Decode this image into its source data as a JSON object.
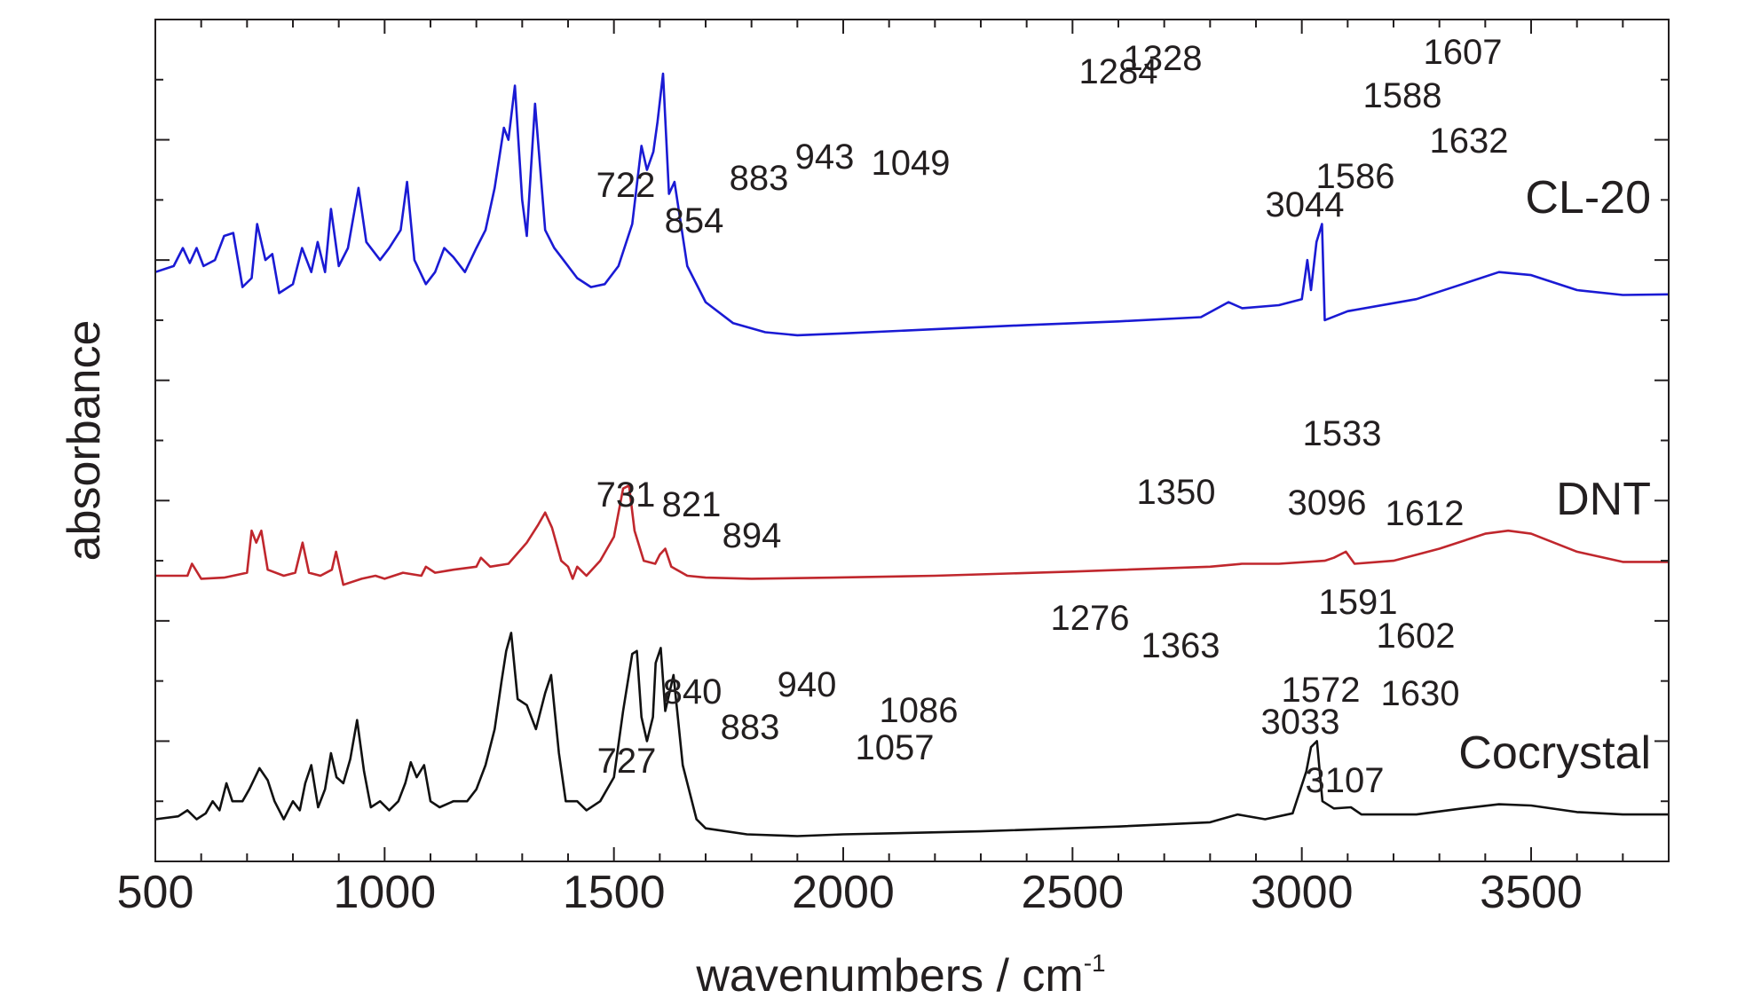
{
  "chart_data": {
    "type": "line",
    "xlabel": "wavenumbers / cm",
    "xlabel_superscript": "-1",
    "ylabel": "absorbance",
    "xlim": [
      500,
      3800
    ],
    "ylim": [
      0,
      14
    ],
    "x_ticks": [
      500,
      1000,
      1500,
      2000,
      2500,
      3000,
      3500
    ],
    "x_tick_labels": [
      "500",
      "1000",
      "1500",
      "2000",
      "2500",
      "3000",
      "3500"
    ],
    "y_tick_labels_shown": false,
    "grid": false,
    "series": [
      {
        "name": "CL-20",
        "color": "#1a1ad4",
        "points": [
          [
            500,
            9.8
          ],
          [
            540,
            9.9
          ],
          [
            560,
            10.2
          ],
          [
            575,
            9.95
          ],
          [
            590,
            10.2
          ],
          [
            605,
            9.9
          ],
          [
            630,
            10.0
          ],
          [
            650,
            10.4
          ],
          [
            670,
            10.45
          ],
          [
            690,
            9.55
          ],
          [
            710,
            9.7
          ],
          [
            722,
            10.6
          ],
          [
            740,
            10.0
          ],
          [
            755,
            10.1
          ],
          [
            770,
            9.45
          ],
          [
            800,
            9.6
          ],
          [
            820,
            10.2
          ],
          [
            840,
            9.8
          ],
          [
            854,
            10.3
          ],
          [
            870,
            9.8
          ],
          [
            883,
            10.85
          ],
          [
            900,
            9.9
          ],
          [
            920,
            10.2
          ],
          [
            943,
            11.2
          ],
          [
            960,
            10.3
          ],
          [
            990,
            10.0
          ],
          [
            1010,
            10.2
          ],
          [
            1035,
            10.5
          ],
          [
            1049,
            11.3
          ],
          [
            1065,
            10.0
          ],
          [
            1090,
            9.6
          ],
          [
            1110,
            9.8
          ],
          [
            1130,
            10.2
          ],
          [
            1150,
            10.05
          ],
          [
            1175,
            9.8
          ],
          [
            1200,
            10.2
          ],
          [
            1220,
            10.5
          ],
          [
            1240,
            11.2
          ],
          [
            1260,
            12.2
          ],
          [
            1270,
            12.0
          ],
          [
            1284,
            12.9
          ],
          [
            1300,
            11.0
          ],
          [
            1310,
            10.4
          ],
          [
            1328,
            12.6
          ],
          [
            1350,
            10.5
          ],
          [
            1370,
            10.2
          ],
          [
            1390,
            10.0
          ],
          [
            1420,
            9.7
          ],
          [
            1450,
            9.55
          ],
          [
            1480,
            9.6
          ],
          [
            1510,
            9.9
          ],
          [
            1540,
            10.6
          ],
          [
            1560,
            11.9
          ],
          [
            1572,
            11.5
          ],
          [
            1586,
            11.8
          ],
          [
            1595,
            12.3
          ],
          [
            1607,
            13.1
          ],
          [
            1620,
            11.1
          ],
          [
            1632,
            11.3
          ],
          [
            1660,
            9.9
          ],
          [
            1700,
            9.3
          ],
          [
            1760,
            8.95
          ],
          [
            1830,
            8.8
          ],
          [
            1900,
            8.75
          ],
          [
            2000,
            8.78
          ],
          [
            2200,
            8.85
          ],
          [
            2400,
            8.92
          ],
          [
            2600,
            8.98
          ],
          [
            2780,
            9.05
          ],
          [
            2840,
            9.3
          ],
          [
            2870,
            9.2
          ],
          [
            2950,
            9.25
          ],
          [
            3000,
            9.35
          ],
          [
            3012,
            10.0
          ],
          [
            3020,
            9.5
          ],
          [
            3032,
            10.3
          ],
          [
            3044,
            10.6
          ],
          [
            3050,
            9.0
          ],
          [
            3100,
            9.15
          ],
          [
            3250,
            9.35
          ],
          [
            3350,
            9.6
          ],
          [
            3430,
            9.8
          ],
          [
            3500,
            9.75
          ],
          [
            3600,
            9.5
          ],
          [
            3700,
            9.42
          ],
          [
            3800,
            9.43
          ]
        ]
      },
      {
        "name": "DNT",
        "color": "#c0272d",
        "points": [
          [
            500,
            4.75
          ],
          [
            570,
            4.75
          ],
          [
            580,
            4.95
          ],
          [
            600,
            4.7
          ],
          [
            650,
            4.72
          ],
          [
            700,
            4.8
          ],
          [
            710,
            5.5
          ],
          [
            720,
            5.3
          ],
          [
            731,
            5.5
          ],
          [
            745,
            4.85
          ],
          [
            780,
            4.75
          ],
          [
            805,
            4.8
          ],
          [
            821,
            5.3
          ],
          [
            835,
            4.8
          ],
          [
            860,
            4.75
          ],
          [
            885,
            4.85
          ],
          [
            894,
            5.15
          ],
          [
            910,
            4.6
          ],
          [
            950,
            4.7
          ],
          [
            980,
            4.75
          ],
          [
            1000,
            4.7
          ],
          [
            1040,
            4.8
          ],
          [
            1080,
            4.75
          ],
          [
            1090,
            4.9
          ],
          [
            1110,
            4.8
          ],
          [
            1150,
            4.85
          ],
          [
            1200,
            4.9
          ],
          [
            1210,
            5.05
          ],
          [
            1230,
            4.9
          ],
          [
            1270,
            4.95
          ],
          [
            1310,
            5.3
          ],
          [
            1335,
            5.6
          ],
          [
            1350,
            5.8
          ],
          [
            1365,
            5.55
          ],
          [
            1385,
            5.0
          ],
          [
            1400,
            4.9
          ],
          [
            1410,
            4.7
          ],
          [
            1420,
            4.9
          ],
          [
            1440,
            4.75
          ],
          [
            1470,
            5.0
          ],
          [
            1500,
            5.4
          ],
          [
            1520,
            6.2
          ],
          [
            1533,
            6.25
          ],
          [
            1545,
            5.5
          ],
          [
            1565,
            5.0
          ],
          [
            1590,
            4.95
          ],
          [
            1600,
            5.1
          ],
          [
            1612,
            5.2
          ],
          [
            1625,
            4.9
          ],
          [
            1660,
            4.75
          ],
          [
            1700,
            4.72
          ],
          [
            1800,
            4.7
          ],
          [
            1980,
            4.72
          ],
          [
            2200,
            4.75
          ],
          [
            2500,
            4.82
          ],
          [
            2800,
            4.9
          ],
          [
            2870,
            4.95
          ],
          [
            2950,
            4.95
          ],
          [
            3050,
            5.0
          ],
          [
            3070,
            5.05
          ],
          [
            3096,
            5.15
          ],
          [
            3115,
            4.95
          ],
          [
            3200,
            5.0
          ],
          [
            3300,
            5.2
          ],
          [
            3400,
            5.45
          ],
          [
            3450,
            5.5
          ],
          [
            3500,
            5.45
          ],
          [
            3600,
            5.15
          ],
          [
            3700,
            4.98
          ],
          [
            3800,
            4.98
          ]
        ]
      },
      {
        "name": "Cocrystal",
        "color": "#111111",
        "points": [
          [
            500,
            0.7
          ],
          [
            550,
            0.75
          ],
          [
            570,
            0.85
          ],
          [
            590,
            0.7
          ],
          [
            610,
            0.8
          ],
          [
            625,
            1.0
          ],
          [
            640,
            0.85
          ],
          [
            655,
            1.3
          ],
          [
            668,
            1.0
          ],
          [
            690,
            1.0
          ],
          [
            705,
            1.2
          ],
          [
            727,
            1.55
          ],
          [
            745,
            1.35
          ],
          [
            760,
            1.0
          ],
          [
            780,
            0.7
          ],
          [
            800,
            1.0
          ],
          [
            815,
            0.85
          ],
          [
            827,
            1.3
          ],
          [
            840,
            1.6
          ],
          [
            855,
            0.9
          ],
          [
            870,
            1.2
          ],
          [
            883,
            1.8
          ],
          [
            895,
            1.4
          ],
          [
            910,
            1.3
          ],
          [
            925,
            1.7
          ],
          [
            940,
            2.35
          ],
          [
            955,
            1.5
          ],
          [
            970,
            0.9
          ],
          [
            990,
            1.0
          ],
          [
            1010,
            0.85
          ],
          [
            1030,
            1.0
          ],
          [
            1045,
            1.3
          ],
          [
            1057,
            1.65
          ],
          [
            1070,
            1.4
          ],
          [
            1086,
            1.6
          ],
          [
            1100,
            1.0
          ],
          [
            1120,
            0.9
          ],
          [
            1150,
            1.0
          ],
          [
            1180,
            1.0
          ],
          [
            1200,
            1.2
          ],
          [
            1220,
            1.6
          ],
          [
            1240,
            2.2
          ],
          [
            1255,
            3.0
          ],
          [
            1265,
            3.5
          ],
          [
            1276,
            3.8
          ],
          [
            1290,
            2.7
          ],
          [
            1310,
            2.6
          ],
          [
            1330,
            2.2
          ],
          [
            1350,
            2.8
          ],
          [
            1363,
            3.1
          ],
          [
            1380,
            1.8
          ],
          [
            1395,
            1.0
          ],
          [
            1420,
            1.0
          ],
          [
            1440,
            0.85
          ],
          [
            1470,
            1.0
          ],
          [
            1500,
            1.4
          ],
          [
            1520,
            2.5
          ],
          [
            1540,
            3.45
          ],
          [
            1550,
            3.5
          ],
          [
            1560,
            2.4
          ],
          [
            1572,
            2.0
          ],
          [
            1585,
            2.4
          ],
          [
            1591,
            3.3
          ],
          [
            1602,
            3.55
          ],
          [
            1612,
            2.5
          ],
          [
            1630,
            3.1
          ],
          [
            1650,
            1.6
          ],
          [
            1680,
            0.7
          ],
          [
            1700,
            0.55
          ],
          [
            1790,
            0.45
          ],
          [
            1900,
            0.42
          ],
          [
            2000,
            0.45
          ],
          [
            2300,
            0.5
          ],
          [
            2600,
            0.58
          ],
          [
            2800,
            0.65
          ],
          [
            2860,
            0.78
          ],
          [
            2920,
            0.7
          ],
          [
            2980,
            0.8
          ],
          [
            3010,
            1.5
          ],
          [
            3020,
            1.9
          ],
          [
            3033,
            2.0
          ],
          [
            3045,
            1.0
          ],
          [
            3070,
            0.88
          ],
          [
            3107,
            0.9
          ],
          [
            3130,
            0.78
          ],
          [
            3250,
            0.78
          ],
          [
            3350,
            0.88
          ],
          [
            3430,
            0.95
          ],
          [
            3500,
            0.93
          ],
          [
            3600,
            0.82
          ],
          [
            3700,
            0.78
          ],
          [
            3800,
            0.78
          ]
        ]
      }
    ],
    "series_labels": [
      "CL-20",
      "DNT",
      "Cocrystal"
    ],
    "annotations": [
      {
        "text": "1284",
        "series": "CL-20",
        "x": 1284
      },
      {
        "text": "1328",
        "series": "CL-20",
        "x": 1328
      },
      {
        "text": "1607",
        "series": "CL-20",
        "x": 1607
      },
      {
        "text": "1588",
        "series": "CL-20",
        "x": 1588
      },
      {
        "text": "1632",
        "series": "CL-20",
        "x": 1632
      },
      {
        "text": "1586",
        "series": "CL-20",
        "x": 1586
      },
      {
        "text": "722",
        "series": "CL-20",
        "x": 722
      },
      {
        "text": "883",
        "series": "CL-20",
        "x": 883
      },
      {
        "text": "943",
        "series": "CL-20",
        "x": 943
      },
      {
        "text": "1049",
        "series": "CL-20",
        "x": 1049
      },
      {
        "text": "854",
        "series": "CL-20",
        "x": 854
      },
      {
        "text": "3044",
        "series": "CL-20",
        "x": 3044
      },
      {
        "text": "1533",
        "series": "DNT",
        "x": 1533
      },
      {
        "text": "731",
        "series": "DNT",
        "x": 731
      },
      {
        "text": "821",
        "series": "DNT",
        "x": 821
      },
      {
        "text": "1350",
        "series": "DNT",
        "x": 1350
      },
      {
        "text": "894",
        "series": "DNT",
        "x": 894
      },
      {
        "text": "1612",
        "series": "DNT",
        "x": 1612
      },
      {
        "text": "3096",
        "series": "DNT",
        "x": 3096
      },
      {
        "text": "1276",
        "series": "Cocrystal",
        "x": 1276
      },
      {
        "text": "1591",
        "series": "Cocrystal",
        "x": 1591
      },
      {
        "text": "1602",
        "series": "Cocrystal",
        "x": 1602
      },
      {
        "text": "1363",
        "series": "Cocrystal",
        "x": 1363
      },
      {
        "text": "1572",
        "series": "Cocrystal",
        "x": 1572
      },
      {
        "text": "840",
        "series": "Cocrystal",
        "x": 840
      },
      {
        "text": "940",
        "series": "Cocrystal",
        "x": 940
      },
      {
        "text": "1630",
        "series": "Cocrystal",
        "x": 1630
      },
      {
        "text": "1086",
        "series": "Cocrystal",
        "x": 1086
      },
      {
        "text": "883",
        "series": "Cocrystal",
        "x": 883
      },
      {
        "text": "727",
        "series": "Cocrystal",
        "x": 727
      },
      {
        "text": "1057",
        "series": "Cocrystal",
        "x": 1057
      },
      {
        "text": "3033",
        "series": "Cocrystal",
        "x": 3033
      },
      {
        "text": "3107",
        "series": "Cocrystal",
        "x": 3107
      }
    ]
  }
}
